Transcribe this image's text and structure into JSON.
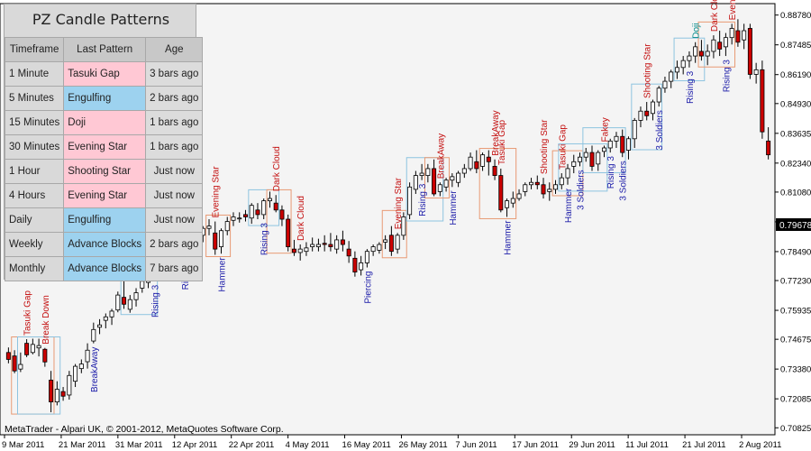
{
  "panel": {
    "title": "PZ Candle Patterns",
    "headers": [
      "Timeframe",
      "Last Pattern",
      "Age"
    ],
    "rows": [
      {
        "timeframe": "1 Minute",
        "pattern": "Tasuki Gap",
        "age": "3 bars ago",
        "kind": "bear"
      },
      {
        "timeframe": "5 Minutes",
        "pattern": "Engulfing",
        "age": "2 bars ago",
        "kind": "bull"
      },
      {
        "timeframe": "15 Minutes",
        "pattern": "Doji",
        "age": "1 bars ago",
        "kind": "bear"
      },
      {
        "timeframe": "30 Minutes",
        "pattern": "Evening Star",
        "age": "1 bars ago",
        "kind": "bear"
      },
      {
        "timeframe": "1 Hour",
        "pattern": "Shooting Star",
        "age": "Just now",
        "kind": "bear"
      },
      {
        "timeframe": "4 Hours",
        "pattern": "Evening Star",
        "age": "Just now",
        "kind": "bear"
      },
      {
        "timeframe": "Daily",
        "pattern": "Engulfing",
        "age": "Just now",
        "kind": "bull"
      },
      {
        "timeframe": "Weekly",
        "pattern": "Advance Blocks",
        "age": "2 bars ago",
        "kind": "bull"
      },
      {
        "timeframe": "Monthly",
        "pattern": "Advance Blocks",
        "age": "7 bars ago",
        "kind": "bull"
      }
    ]
  },
  "colors": {
    "bull_cell": "#9dd2ef",
    "bear_cell": "#ffc8d4",
    "bull_label": "#1a1aa8",
    "bear_label": "#c41010",
    "candle_down": "#cc0000",
    "candle_up": "#ffffff",
    "background": "#f4f4f4",
    "bull_box": "#8ec4e0",
    "bear_box": "#e89a74",
    "cyan_label": "#008a8a"
  },
  "chart_data": {
    "type": "candlestick",
    "footer": "MetaTrader - Alpari UK, © 2001-2012, MetaQuotes Software Corp.",
    "current_price": "0.79678",
    "ylim": [
      0.706,
      0.892
    ],
    "y_ticks": [
      "0.88780",
      "0.87485",
      "0.86190",
      "0.84930",
      "0.83635",
      "0.82340",
      "0.81080",
      "0.79785",
      "0.78490",
      "0.77230",
      "0.75935",
      "0.74675",
      "0.73380",
      "0.72085",
      "0.70825"
    ],
    "x_ticks": [
      "9 Mar 2011",
      "21 Mar 2011",
      "31 Mar 2011",
      "12 Apr 2011",
      "22 Apr 2011",
      "4 May 2011",
      "16 May 2011",
      "26 May 2011",
      "7 Jun 2011",
      "17 Jun 2011",
      "29 Jun 2011",
      "11 Jul 2011",
      "21 Jul 2011",
      "2 Aug 2011"
    ],
    "candles": [
      [
        0.741,
        0.7432,
        0.738,
        0.7363
      ],
      [
        0.7395,
        0.742,
        0.733,
        0.732
      ],
      [
        0.7338,
        0.741,
        0.7358,
        0.7325
      ],
      [
        0.745,
        0.7468,
        0.74,
        0.739
      ],
      [
        0.741,
        0.747,
        0.7445,
        0.7402
      ],
      [
        0.743,
        0.747,
        0.744,
        0.7393
      ],
      [
        0.7424,
        0.743,
        0.7369,
        0.7348
      ],
      [
        0.729,
        0.733,
        0.7195,
        0.715
      ],
      [
        0.7195,
        0.7285,
        0.725,
        0.718
      ],
      [
        0.724,
        0.726,
        0.722,
        0.72
      ],
      [
        0.7225,
        0.733,
        0.731,
        0.7205
      ],
      [
        0.7285,
        0.736,
        0.735,
        0.726
      ],
      [
        0.734,
        0.738,
        0.736,
        0.732
      ],
      [
        0.737,
        0.745,
        0.742,
        0.734
      ],
      [
        0.746,
        0.754,
        0.751,
        0.745
      ],
      [
        0.752,
        0.7555,
        0.753,
        0.749
      ],
      [
        0.755,
        0.758,
        0.7565,
        0.7515
      ],
      [
        0.7565,
        0.76,
        0.759,
        0.753
      ],
      [
        0.7595,
        0.7675,
        0.766,
        0.7585
      ],
      [
        0.765,
        0.772,
        0.762,
        0.76
      ],
      [
        0.7598,
        0.766,
        0.764,
        0.7583
      ],
      [
        0.764,
        0.769,
        0.767,
        0.761
      ],
      [
        0.769,
        0.773,
        0.772,
        0.767
      ],
      [
        0.7715,
        0.775,
        0.774,
        0.769
      ],
      [
        0.7735,
        0.779,
        0.778,
        0.772
      ],
      [
        0.779,
        0.783,
        0.781,
        0.775
      ],
      [
        0.781,
        0.785,
        0.784,
        0.778
      ],
      [
        0.7835,
        0.786,
        0.785,
        0.78
      ],
      [
        0.784,
        0.787,
        0.786,
        0.782
      ],
      [
        0.786,
        0.79,
        0.788,
        0.784
      ],
      [
        0.788,
        0.791,
        0.79,
        0.785
      ],
      [
        0.789,
        0.794,
        0.793,
        0.786
      ],
      [
        0.792,
        0.796,
        0.795,
        0.789
      ],
      [
        0.795,
        0.799,
        0.796,
        0.792
      ],
      [
        0.793,
        0.798,
        0.786,
        0.7835
      ],
      [
        0.787,
        0.795,
        0.794,
        0.784
      ],
      [
        0.794,
        0.8,
        0.798,
        0.792
      ],
      [
        0.7985,
        0.802,
        0.8,
        0.796
      ],
      [
        0.7995,
        0.802,
        0.7995,
        0.7975
      ],
      [
        0.801,
        0.803,
        0.8,
        0.798
      ],
      [
        0.7995,
        0.806,
        0.805,
        0.797
      ],
      [
        0.803,
        0.806,
        0.801,
        0.799
      ],
      [
        0.801,
        0.808,
        0.807,
        0.799
      ],
      [
        0.807,
        0.811,
        0.808,
        0.804
      ],
      [
        0.806,
        0.8095,
        0.803,
        0.802
      ],
      [
        0.803,
        0.805,
        0.799,
        0.796
      ],
      [
        0.799,
        0.801,
        0.787,
        0.785
      ],
      [
        0.786,
        0.79,
        0.7845,
        0.783
      ],
      [
        0.7845,
        0.788,
        0.786,
        0.781
      ],
      [
        0.785,
        0.789,
        0.7865,
        0.783
      ],
      [
        0.787,
        0.791,
        0.788,
        0.785
      ],
      [
        0.787,
        0.7905,
        0.788,
        0.785
      ],
      [
        0.7885,
        0.792,
        0.788,
        0.785
      ],
      [
        0.788,
        0.793,
        0.787,
        0.785
      ],
      [
        0.786,
        0.792,
        0.79,
        0.784
      ],
      [
        0.79,
        0.794,
        0.788,
        0.785
      ],
      [
        0.786,
        0.7895,
        0.783,
        0.78
      ],
      [
        0.782,
        0.785,
        0.776,
        0.774
      ],
      [
        0.777,
        0.783,
        0.78,
        0.7745
      ],
      [
        0.78,
        0.786,
        0.785,
        0.778
      ],
      [
        0.785,
        0.788,
        0.787,
        0.783
      ],
      [
        0.7855,
        0.789,
        0.788,
        0.784
      ],
      [
        0.789,
        0.792,
        0.79,
        0.786
      ],
      [
        0.792,
        0.796,
        0.785,
        0.783
      ],
      [
        0.786,
        0.793,
        0.792,
        0.784
      ],
      [
        0.792,
        0.802,
        0.8,
        0.79
      ],
      [
        0.801,
        0.815,
        0.813,
        0.799
      ],
      [
        0.812,
        0.82,
        0.818,
        0.81
      ],
      [
        0.818,
        0.823,
        0.819,
        0.816
      ],
      [
        0.818,
        0.823,
        0.821,
        0.815
      ],
      [
        0.821,
        0.825,
        0.81,
        0.809
      ],
      [
        0.811,
        0.815,
        0.814,
        0.809
      ],
      [
        0.813,
        0.817,
        0.816,
        0.811
      ],
      [
        0.816,
        0.819,
        0.8175,
        0.813
      ],
      [
        0.815,
        0.82,
        0.819,
        0.813
      ],
      [
        0.819,
        0.823,
        0.821,
        0.817
      ],
      [
        0.821,
        0.828,
        0.826,
        0.82
      ],
      [
        0.824,
        0.829,
        0.821,
        0.819
      ],
      [
        0.822,
        0.828,
        0.827,
        0.82
      ],
      [
        0.826,
        0.829,
        0.824,
        0.818
      ],
      [
        0.822,
        0.825,
        0.818,
        0.816
      ],
      [
        0.818,
        0.821,
        0.803,
        0.802
      ],
      [
        0.804,
        0.808,
        0.807,
        0.8
      ],
      [
        0.806,
        0.811,
        0.808,
        0.804
      ],
      [
        0.808,
        0.812,
        0.81,
        0.807
      ],
      [
        0.811,
        0.815,
        0.814,
        0.809
      ],
      [
        0.814,
        0.817,
        0.815,
        0.812
      ],
      [
        0.815,
        0.818,
        0.814,
        0.812
      ],
      [
        0.814,
        0.817,
        0.81,
        0.808
      ],
      [
        0.811,
        0.815,
        0.812,
        0.807
      ],
      [
        0.812,
        0.816,
        0.814,
        0.81
      ],
      [
        0.814,
        0.819,
        0.817,
        0.812
      ],
      [
        0.817,
        0.823,
        0.821,
        0.814
      ],
      [
        0.822,
        0.827,
        0.824,
        0.819
      ],
      [
        0.824,
        0.828,
        0.826,
        0.822
      ],
      [
        0.826,
        0.83,
        0.828,
        0.824
      ],
      [
        0.828,
        0.831,
        0.822,
        0.82
      ],
      [
        0.823,
        0.829,
        0.828,
        0.82
      ],
      [
        0.8285,
        0.831,
        0.83,
        0.826
      ],
      [
        0.83,
        0.834,
        0.833,
        0.828
      ],
      [
        0.833,
        0.837,
        0.835,
        0.83
      ],
      [
        0.835,
        0.838,
        0.828,
        0.826
      ],
      [
        0.829,
        0.835,
        0.834,
        0.825
      ],
      [
        0.834,
        0.843,
        0.842,
        0.83
      ],
      [
        0.842,
        0.848,
        0.846,
        0.839
      ],
      [
        0.846,
        0.85,
        0.844,
        0.842
      ],
      [
        0.845,
        0.851,
        0.85,
        0.842
      ],
      [
        0.85,
        0.857,
        0.856,
        0.848
      ],
      [
        0.856,
        0.861,
        0.859,
        0.854
      ],
      [
        0.859,
        0.864,
        0.863,
        0.856
      ],
      [
        0.863,
        0.868,
        0.865,
        0.86
      ],
      [
        0.865,
        0.87,
        0.868,
        0.862
      ],
      [
        0.868,
        0.872,
        0.87,
        0.865
      ],
      [
        0.87,
        0.876,
        0.874,
        0.867
      ],
      [
        0.872,
        0.877,
        0.87,
        0.868
      ],
      [
        0.87,
        0.875,
        0.872,
        0.866
      ],
      [
        0.872,
        0.879,
        0.877,
        0.869
      ],
      [
        0.876,
        0.881,
        0.873,
        0.87
      ],
      [
        0.874,
        0.88,
        0.878,
        0.87
      ],
      [
        0.878,
        0.884,
        0.882,
        0.875
      ],
      [
        0.881,
        0.886,
        0.876,
        0.874
      ],
      [
        0.877,
        0.884,
        0.881,
        0.873
      ],
      [
        0.882,
        0.884,
        0.862,
        0.86
      ],
      [
        0.862,
        0.867,
        0.864,
        0.858
      ],
      [
        0.864,
        0.868,
        0.837,
        0.834
      ],
      [
        0.833,
        0.839,
        0.827,
        0.825
      ]
    ],
    "pattern_labels": [
      {
        "i": 3,
        "text": "Tasuki Gap",
        "kind": "bear",
        "pos": "above"
      },
      {
        "i": 6,
        "text": "Break Down",
        "kind": "bear",
        "pos": "above"
      },
      {
        "i": 14,
        "text": "BreakAway",
        "kind": "bull",
        "pos": "below"
      },
      {
        "i": 24,
        "text": "Rising 3",
        "kind": "bull",
        "pos": "below"
      },
      {
        "i": 29,
        "text": "Rising 3",
        "kind": "bull",
        "pos": "below"
      },
      {
        "i": 34,
        "text": "Evening Star",
        "kind": "bear",
        "pos": "above"
      },
      {
        "i": 35,
        "text": "Hammer",
        "kind": "bull",
        "pos": "below"
      },
      {
        "i": 42,
        "text": "Rising 3",
        "kind": "bull",
        "pos": "below"
      },
      {
        "i": 44,
        "text": "Dark Cloud",
        "kind": "bear",
        "pos": "above"
      },
      {
        "i": 48,
        "text": "Dark Cloud",
        "kind": "bear",
        "pos": "above"
      },
      {
        "i": 59,
        "text": "Piercing",
        "kind": "bull",
        "pos": "below"
      },
      {
        "i": 64,
        "text": "Evening Star",
        "kind": "bear",
        "pos": "above"
      },
      {
        "i": 68,
        "text": "Rising 3",
        "kind": "bull",
        "pos": "below"
      },
      {
        "i": 71,
        "text": "BreakAway",
        "kind": "bear",
        "pos": "above"
      },
      {
        "i": 73,
        "text": "Hammer",
        "kind": "bull",
        "pos": "below"
      },
      {
        "i": 80,
        "text": "BreakAway",
        "kind": "bear",
        "pos": "above"
      },
      {
        "i": 81,
        "text": "Tasuki Gap",
        "kind": "bear",
        "pos": "above"
      },
      {
        "i": 82,
        "text": "Hammer",
        "kind": "bull",
        "pos": "below"
      },
      {
        "i": 88,
        "text": "Shooting Star",
        "kind": "bear",
        "pos": "above"
      },
      {
        "i": 91,
        "text": "Tasuki Gap",
        "kind": "bear",
        "pos": "above"
      },
      {
        "i": 92,
        "text": "Hammer",
        "kind": "bull",
        "pos": "below"
      },
      {
        "i": 94,
        "text": "3 Soldiers",
        "kind": "bull",
        "pos": "below"
      },
      {
        "i": 98,
        "text": "Fakey",
        "kind": "bear",
        "pos": "above"
      },
      {
        "i": 99,
        "text": "Rising 3",
        "kind": "bull",
        "pos": "below"
      },
      {
        "i": 101,
        "text": "3 Soldiers",
        "kind": "bull",
        "pos": "below"
      },
      {
        "i": 105,
        "text": "Shooting Star",
        "kind": "bear",
        "pos": "above"
      },
      {
        "i": 107,
        "text": "3 Soldiers",
        "kind": "bull",
        "pos": "below"
      },
      {
        "i": 112,
        "text": "Rising 3",
        "kind": "bull",
        "pos": "below"
      },
      {
        "i": 113,
        "text": "Doji",
        "kind": "cyan",
        "pos": "above"
      },
      {
        "i": 116,
        "text": "Dark Cloud",
        "kind": "bear",
        "pos": "above"
      },
      {
        "i": 118,
        "text": "Rising 3",
        "kind": "bull",
        "pos": "below"
      },
      {
        "i": 119,
        "text": "Evening Star",
        "kind": "bear",
        "pos": "above"
      }
    ],
    "pattern_boxes": [
      {
        "from": 1,
        "to": 7,
        "kind": "bear"
      },
      {
        "from": 2,
        "to": 8,
        "kind": "bull"
      },
      {
        "from": 19,
        "to": 24,
        "kind": "bull"
      },
      {
        "from": 33,
        "to": 36,
        "kind": "bear"
      },
      {
        "from": 40,
        "to": 44,
        "kind": "bull"
      },
      {
        "from": 43,
        "to": 46,
        "kind": "bear"
      },
      {
        "from": 62,
        "to": 65,
        "kind": "bear"
      },
      {
        "from": 66,
        "to": 71,
        "kind": "bull"
      },
      {
        "from": 69,
        "to": 72,
        "kind": "bear"
      },
      {
        "from": 78,
        "to": 83,
        "kind": "bear"
      },
      {
        "from": 90,
        "to": 94,
        "kind": "bear"
      },
      {
        "from": 91,
        "to": 98,
        "kind": "bull"
      },
      {
        "from": 95,
        "to": 101,
        "kind": "bull"
      },
      {
        "from": 103,
        "to": 107,
        "kind": "bull"
      },
      {
        "from": 110,
        "to": 114,
        "kind": "bull"
      },
      {
        "from": 114,
        "to": 119,
        "kind": "bear"
      }
    ]
  }
}
